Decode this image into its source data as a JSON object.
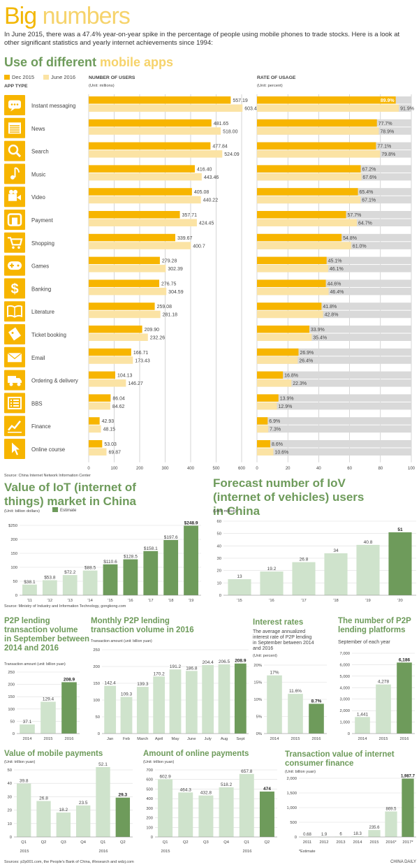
{
  "header": {
    "title_a": "Big",
    "title_b": "numbers",
    "intro": "In June 2015, there was a 47.4% year-on-year spike in the percentage of people using mobile phones to trade stocks. Here is a look at other significant statistics and yearly internet achievements since 1994:"
  },
  "apps": {
    "title_a": "Use of different",
    "title_b": "mobile apps",
    "legend": [
      "Dec 2015",
      "June 2016"
    ],
    "col_type": "APP TYPE",
    "col_users": "NUMBER OF USERS",
    "unit_users": "(Unit: millions)",
    "col_rate": "RATE OF USAGE",
    "unit_rate": "(Unit: percent)",
    "source": "Source: China Internet Network Information Center",
    "colors": {
      "dec": "#f7b500",
      "jun": "#fbe3a4",
      "grey": "#d9d9d9",
      "icon": "#f7b500"
    }
  },
  "chart_data": [
    {
      "type": "bar",
      "orientation": "horizontal",
      "id": "apps-users",
      "categories": [
        "Instant messaging",
        "News",
        "Search",
        "Music",
        "Video",
        "Payment",
        "Shopping",
        "Games",
        "Banking",
        "Literature",
        "Ticket booking",
        "Email",
        "Ordering & delivery",
        "BBS",
        "Finance",
        "Online course"
      ],
      "icons": [
        "chat-icon",
        "news-icon",
        "search-icon",
        "music-icon",
        "video-icon",
        "payment-icon",
        "cart-icon",
        "gamepad-icon",
        "dollar-icon",
        "book-icon",
        "ticket-icon",
        "mail-icon",
        "truck-icon",
        "list-icon",
        "chart-icon",
        "cursor-icon"
      ],
      "series": [
        {
          "name": "Dec 2015",
          "values": [
            557.19,
            481.65,
            477.84,
            416.4,
            405.08,
            357.71,
            339.67,
            279.28,
            276.75,
            259.08,
            209.9,
            166.71,
            104.13,
            86.04,
            42.93,
            53.03
          ],
          "labels": [
            "557.19",
            "481.65",
            "477.84",
            "416.40",
            "405.08",
            "357.71",
            "339.67",
            "279.28",
            "276.75",
            "259.08",
            "209.90",
            "166.71",
            "104.13",
            "86.04",
            "42.93",
            "53.03"
          ]
        },
        {
          "name": "June 2016",
          "values": [
            603.46,
            518.0,
            524.09,
            443.46,
            440.22,
            424.45,
            400.7,
            302.39,
            304.59,
            281.18,
            232.26,
            173.43,
            146.27,
            84.62,
            48.15,
            69.87
          ],
          "labels": [
            "603.46",
            "518.00",
            "524.09",
            "443.46",
            "440.22",
            "424.45",
            "400.7",
            "302.39",
            "304.59",
            "281.18",
            "232.26",
            "173.43",
            "146.27",
            "84.62",
            "48.15",
            "69.87"
          ]
        }
      ],
      "xlim": [
        0,
        600
      ],
      "xticks": [
        "0",
        "100",
        "200",
        "300",
        "400",
        "500",
        "600"
      ]
    },
    {
      "type": "bar",
      "orientation": "horizontal",
      "id": "apps-rate",
      "categories": [
        "Instant messaging",
        "News",
        "Search",
        "Music",
        "Video",
        "Payment",
        "Shopping",
        "Games",
        "Banking",
        "Literature",
        "Ticket booking",
        "Email",
        "Ordering & delivery",
        "BBS",
        "Finance",
        "Online course"
      ],
      "series": [
        {
          "name": "Dec 2015",
          "values": [
            89.9,
            77.7,
            77.1,
            67.2,
            65.4,
            57.7,
            54.8,
            45.1,
            44.6,
            41.8,
            33.9,
            26.9,
            16.8,
            13.9,
            6.9,
            8.6
          ],
          "labels": [
            "89.9%",
            "77.7%",
            "77.1%",
            "67.2%",
            "65.4%",
            "57.7%",
            "54.8%",
            "45.1%",
            "44.6%",
            "41.8%",
            "33.9%",
            "26.9%",
            "16.8%",
            "13.9%",
            "6.9%",
            "8.6%"
          ]
        },
        {
          "name": "June 2016",
          "values": [
            91.9,
            78.9,
            79.8,
            67.6,
            67.1,
            64.7,
            61.0,
            46.1,
            46.4,
            42.8,
            35.4,
            26.4,
            22.3,
            12.9,
            7.3,
            10.6
          ],
          "labels": [
            "91.9%",
            "78.9%",
            "79.8%",
            "67.6%",
            "67.1%",
            "64.7%",
            "61.0%",
            "46.1%",
            "46.4%",
            "42.8%",
            "35.4%",
            "26.4%",
            "22.3%",
            "12.9%",
            "7.3%",
            "10.6%"
          ]
        }
      ],
      "xlim": [
        0,
        100
      ],
      "xticks": [
        "0",
        "20",
        "40",
        "60",
        "80",
        "100"
      ]
    },
    {
      "type": "bar",
      "id": "iot",
      "title": "Value of IoT (internet of things) market in China",
      "unit": "(Unit: billion dollars)",
      "legend": "Estimate",
      "categories": [
        "'11",
        "'12",
        "'13",
        "'14",
        "'15",
        "'16",
        "'17",
        "'18",
        "'19"
      ],
      "values": [
        38.1,
        53.8,
        72.2,
        88.5,
        110.6,
        128.5,
        158.1,
        197.6,
        248.9
      ],
      "labels": [
        "$38.1",
        "$53.8",
        "$72.2",
        "$88.5",
        "$110.6",
        "$128.5",
        "$158.1",
        "$197.6",
        "$248.9"
      ],
      "estimate": [
        false,
        false,
        false,
        false,
        true,
        true,
        true,
        true,
        true
      ],
      "ylim": [
        0,
        250
      ],
      "yticks": [
        "0",
        "50",
        "100",
        "150",
        "200",
        "$250"
      ]
    },
    {
      "type": "bar",
      "id": "iov",
      "title": "Forecast number of IoV (internet of vehicles) users in China",
      "unit": "(Unit: million)",
      "categories": [
        "'15",
        "'16",
        "'17",
        "'18",
        "'19",
        "'20"
      ],
      "values": [
        13,
        19.2,
        26.8,
        34,
        40.8,
        51
      ],
      "labels": [
        "13",
        "19.2",
        "26.8",
        "34",
        "40.8",
        "51"
      ],
      "ylim": [
        0,
        60
      ],
      "yticks": [
        "0",
        "10",
        "20",
        "30",
        "40",
        "50",
        "60"
      ]
    },
    {
      "type": "bar",
      "id": "p2p-sept",
      "title": "P2P lending transaction volume in September between 2014 and 2016",
      "unit": "Transaction amount (unit: billion yuan)",
      "categories": [
        "2014",
        "2015",
        "2016"
      ],
      "values": [
        37.1,
        129.4,
        208.9
      ],
      "labels": [
        "37.1",
        "129.4",
        "208.9"
      ],
      "ylim": [
        0,
        250
      ],
      "yticks": [
        "0",
        "50",
        "100",
        "150",
        "200",
        "250"
      ]
    },
    {
      "type": "bar",
      "id": "p2p-monthly",
      "title": "Monthly P2P lending transaction volume in 2016",
      "unit": "Transaction amount (unit: billion yuan)",
      "categories": [
        "Jan",
        "Feb",
        "March",
        "April",
        "May",
        "June",
        "July",
        "Aug",
        "Sept"
      ],
      "values": [
        142.4,
        109.3,
        139.3,
        170.2,
        191.2,
        186.8,
        204.4,
        206.5,
        208.9
      ],
      "labels": [
        "142.4",
        "109.3",
        "139.3",
        "170.2",
        "191.2",
        "186.8",
        "204.4",
        "206.5",
        "208.9"
      ],
      "ylim": [
        0,
        250
      ],
      "yticks": [
        "0",
        "50",
        "100",
        "150",
        "200",
        "250"
      ]
    },
    {
      "type": "bar",
      "id": "interest",
      "title": "Interest rates",
      "subtitle": "The average annualized interest rate of P2P lending in September between 2014 and 2016",
      "unit": "(Unit: percent)",
      "categories": [
        "2014",
        "2015",
        "2016"
      ],
      "values": [
        17,
        11.6,
        8.7
      ],
      "labels": [
        "17%",
        "11.6%",
        "8.7%"
      ],
      "ylim": [
        0,
        20
      ],
      "yticks": [
        "0%",
        "5%",
        "10%",
        "15%",
        "20%"
      ]
    },
    {
      "type": "bar",
      "id": "platforms",
      "title": "The number of P2P lending platforms",
      "subtitle": "September of each year",
      "categories": [
        "2014",
        "2015",
        "2016"
      ],
      "values": [
        1441,
        4278,
        6186
      ],
      "labels": [
        "1,441",
        "4,278",
        "6,186"
      ],
      "ylim": [
        0,
        7000
      ],
      "yticks": [
        "0",
        "1,000",
        "2,000",
        "3,000",
        "4,000",
        "5,000",
        "6,000",
        "7,000"
      ]
    },
    {
      "type": "bar",
      "id": "mobile-pay",
      "title": "Value of mobile payments",
      "unit": "(Unit: trillion yuan)",
      "categories": [
        "Q1",
        "Q2",
        "Q3",
        "Q4",
        "Q1",
        "Q2"
      ],
      "groups": [
        "2015",
        "2016"
      ],
      "values": [
        39.8,
        26.8,
        18.2,
        23.5,
        52.1,
        29.3
      ],
      "labels": [
        "39.8",
        "26.8",
        "18.2",
        "23.5",
        "52.1",
        "29.3"
      ],
      "ylim": [
        0,
        50
      ],
      "yticks": [
        "0",
        "10",
        "20",
        "30",
        "40",
        "50"
      ]
    },
    {
      "type": "bar",
      "id": "online-pay",
      "title": "Amount of online payments",
      "unit": "(Unit: trillion yuan)",
      "categories": [
        "Q1",
        "Q2",
        "Q3",
        "Q4",
        "Q1",
        "Q2"
      ],
      "groups": [
        "2015",
        "2016"
      ],
      "values": [
        602.9,
        464.3,
        432.8,
        518.2,
        657.8,
        474
      ],
      "labels": [
        "602.9",
        "464.3",
        "432.8",
        "518.2",
        "657.8",
        "474"
      ],
      "ylim": [
        0,
        700
      ],
      "yticks": [
        "0",
        "100",
        "200",
        "300",
        "400",
        "500",
        "600",
        "700"
      ]
    },
    {
      "type": "bar",
      "id": "consumer-fin",
      "title": "Transaction value of internet consumer finance",
      "unit": "(Unit: billion yuan)",
      "note": "*Estimate",
      "categories": [
        "2011",
        "2012",
        "2013",
        "2014",
        "2015",
        "2016*",
        "2017*"
      ],
      "values": [
        0.68,
        1.9,
        6,
        18.3,
        235.6,
        869.5,
        1987.7
      ],
      "labels": [
        "0.68",
        "1.9",
        "6",
        "18.3",
        "235.6",
        "869.5",
        "1,987.7"
      ],
      "ylim": [
        0,
        2000
      ],
      "yticks": [
        "0",
        "500",
        "1,000",
        "1,500",
        "2,000"
      ]
    }
  ],
  "sources": {
    "iot": "Source: Ministry of Industry and Information Technology, gongkong.com",
    "bottom": "Sources: p2p001.com, the People's Bank of China, iResearch and wdzj.com",
    "credit": "CHINA DAILY"
  },
  "colors": {
    "light_green": "#cfe3cc",
    "dark_green": "#6e9b5b",
    "title_green": "#6e9b5b",
    "yellow": "#f7b500"
  }
}
